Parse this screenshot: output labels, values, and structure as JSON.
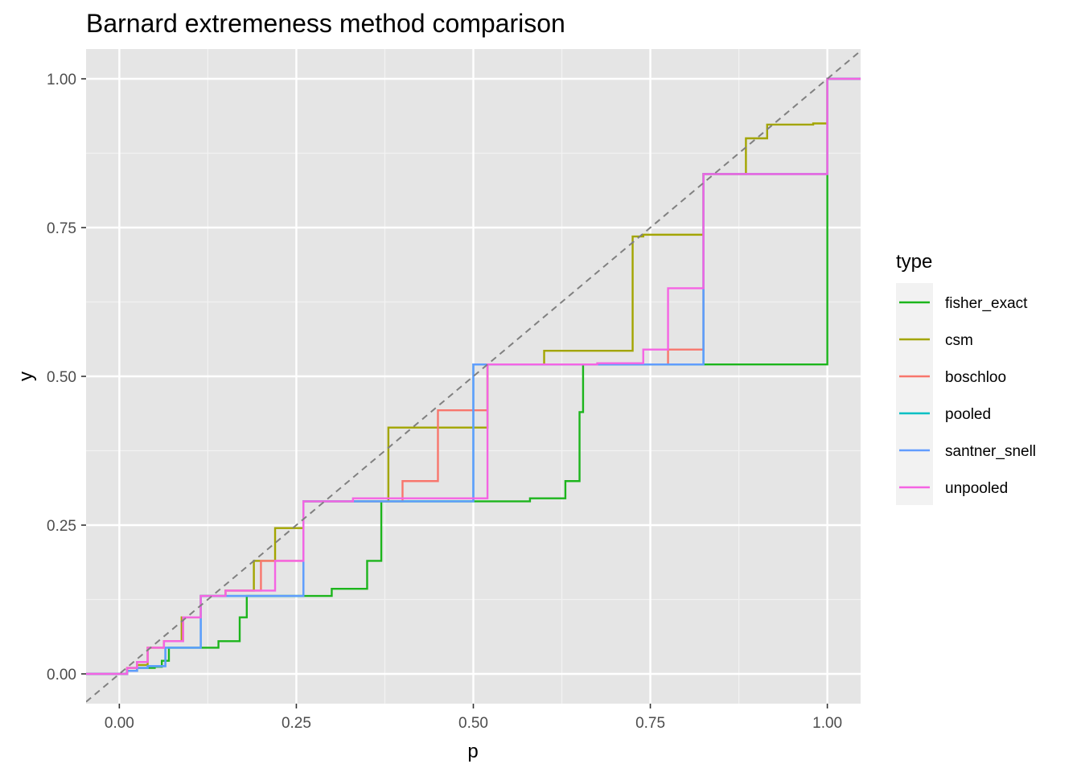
{
  "chart_data": {
    "type": "line",
    "title": "Barnard extremeness method comparison",
    "xlabel": "p",
    "ylabel": "y",
    "xlim": [
      -0.047,
      1.047
    ],
    "ylim": [
      -0.05,
      1.05
    ],
    "x_ticks": [
      0.0,
      0.25,
      0.5,
      0.75,
      1.0
    ],
    "x_tick_labels": [
      "0.00",
      "0.25",
      "0.50",
      "0.75",
      "1.00"
    ],
    "y_ticks": [
      0.0,
      0.25,
      0.5,
      0.75,
      1.0
    ],
    "y_tick_labels": [
      "0.00",
      "0.25",
      "0.50",
      "0.75",
      "1.00"
    ],
    "grid": true,
    "reference_line": {
      "slope": 1,
      "intercept": 0,
      "style": "dashed",
      "color": "#808080"
    },
    "legend": {
      "title": "type",
      "position": "right"
    },
    "series": [
      {
        "name": "fisher_exact",
        "color": "#1cb51c",
        "points": [
          [
            -0.047,
            0
          ],
          [
            0,
            0
          ],
          [
            0.011,
            0.005
          ],
          [
            0.025,
            0.01
          ],
          [
            0.05,
            0.012
          ],
          [
            0.06,
            0.022
          ],
          [
            0.07,
            0.044
          ],
          [
            0.14,
            0.055
          ],
          [
            0.17,
            0.095
          ],
          [
            0.18,
            0.131
          ],
          [
            0.3,
            0.143
          ],
          [
            0.35,
            0.19
          ],
          [
            0.37,
            0.29
          ],
          [
            0.58,
            0.295
          ],
          [
            0.63,
            0.324
          ],
          [
            0.65,
            0.44
          ],
          [
            0.655,
            0.52
          ],
          [
            1.0,
            0.52
          ],
          [
            1.0,
            1.0
          ],
          [
            1.047,
            1.0
          ]
        ]
      },
      {
        "name": "csm",
        "color": "#a3a500",
        "points": [
          [
            -0.047,
            0
          ],
          [
            0,
            0
          ],
          [
            0.011,
            0.01
          ],
          [
            0.025,
            0.015
          ],
          [
            0.04,
            0.044
          ],
          [
            0.063,
            0.055
          ],
          [
            0.088,
            0.095
          ],
          [
            0.115,
            0.131
          ],
          [
            0.15,
            0.14
          ],
          [
            0.19,
            0.19
          ],
          [
            0.22,
            0.245
          ],
          [
            0.26,
            0.29
          ],
          [
            0.38,
            0.414
          ],
          [
            0.52,
            0.52
          ],
          [
            0.6,
            0.543
          ],
          [
            0.725,
            0.735
          ],
          [
            0.74,
            0.738
          ],
          [
            0.825,
            0.84
          ],
          [
            0.885,
            0.9
          ],
          [
            0.915,
            0.923
          ],
          [
            0.98,
            0.925
          ],
          [
            1.0,
            1.0
          ],
          [
            1.047,
            1.0
          ]
        ]
      },
      {
        "name": "boschloo",
        "color": "#f8766d",
        "points": [
          [
            -0.047,
            0
          ],
          [
            0,
            0
          ],
          [
            0.011,
            0.01
          ],
          [
            0.025,
            0.02
          ],
          [
            0.04,
            0.044
          ],
          [
            0.063,
            0.055
          ],
          [
            0.09,
            0.095
          ],
          [
            0.115,
            0.131
          ],
          [
            0.15,
            0.14
          ],
          [
            0.2,
            0.19
          ],
          [
            0.26,
            0.29
          ],
          [
            0.4,
            0.324
          ],
          [
            0.45,
            0.443
          ],
          [
            0.52,
            0.52
          ],
          [
            0.775,
            0.545
          ],
          [
            0.825,
            0.84
          ],
          [
            1.0,
            1.0
          ],
          [
            1.047,
            1.0
          ]
        ]
      },
      {
        "name": "pooled",
        "color": "#00bfc4",
        "points": [
          [
            -0.047,
            0
          ],
          [
            0,
            0
          ],
          [
            0.011,
            0.005
          ],
          [
            0.025,
            0.01
          ],
          [
            0.04,
            0.013
          ],
          [
            0.065,
            0.044
          ],
          [
            0.115,
            0.131
          ],
          [
            0.26,
            0.29
          ],
          [
            0.5,
            0.52
          ],
          [
            0.825,
            0.84
          ],
          [
            1.0,
            1.0
          ],
          [
            1.047,
            1.0
          ]
        ]
      },
      {
        "name": "santner_snell",
        "color": "#619cff",
        "points": [
          [
            -0.047,
            0
          ],
          [
            0,
            0
          ],
          [
            0.011,
            0.005
          ],
          [
            0.025,
            0.01
          ],
          [
            0.04,
            0.013
          ],
          [
            0.065,
            0.044
          ],
          [
            0.115,
            0.131
          ],
          [
            0.26,
            0.29
          ],
          [
            0.5,
            0.52
          ],
          [
            0.825,
            0.84
          ],
          [
            1.0,
            1.0
          ],
          [
            1.047,
            1.0
          ]
        ]
      },
      {
        "name": "unpooled",
        "color": "#f564e3",
        "points": [
          [
            -0.047,
            0
          ],
          [
            0,
            0
          ],
          [
            0.011,
            0.01
          ],
          [
            0.025,
            0.02
          ],
          [
            0.04,
            0.044
          ],
          [
            0.063,
            0.055
          ],
          [
            0.09,
            0.095
          ],
          [
            0.115,
            0.131
          ],
          [
            0.15,
            0.14
          ],
          [
            0.22,
            0.19
          ],
          [
            0.26,
            0.29
          ],
          [
            0.33,
            0.295
          ],
          [
            0.52,
            0.52
          ],
          [
            0.675,
            0.522
          ],
          [
            0.74,
            0.545
          ],
          [
            0.775,
            0.648
          ],
          [
            0.825,
            0.84
          ],
          [
            1.0,
            1.0
          ],
          [
            1.047,
            1.0
          ]
        ]
      }
    ]
  }
}
